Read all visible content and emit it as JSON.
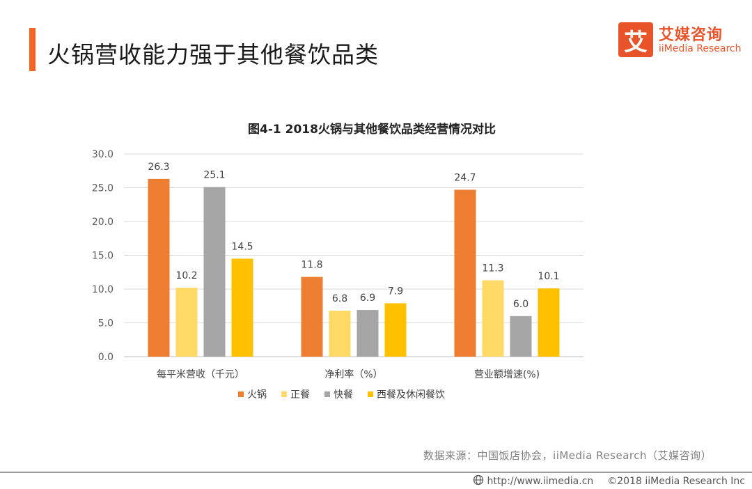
{
  "page": {
    "title": "火锅营收能力强于其他餐饮品类",
    "accent_color": "#f26522"
  },
  "logo": {
    "mark": "艾",
    "name_cn": "艾媒咨询",
    "name_en": "iiMedia Research",
    "color": "#e8532a"
  },
  "chart_data": {
    "type": "bar",
    "title": "图4-1 2018火锅与其他餐饮品类经营情况对比",
    "categories": [
      "每平米营收（千元）",
      "净利率（%）",
      "营业额增速(%)"
    ],
    "series": [
      {
        "name": "火锅",
        "values": [
          26.3,
          11.8,
          24.7
        ],
        "color": "#ed7d31"
      },
      {
        "name": "正餐",
        "values": [
          10.2,
          6.8,
          11.3
        ],
        "color": "#ffd966"
      },
      {
        "name": "快餐",
        "values": [
          25.1,
          6.9,
          6.0
        ],
        "color": "#a5a5a5"
      },
      {
        "name": "西餐及休闲餐饮",
        "values": [
          14.5,
          7.9,
          10.1
        ],
        "color": "#ffc000"
      }
    ],
    "ylim": [
      0,
      30
    ],
    "yticks": [
      "0.0",
      "5.0",
      "10.0",
      "15.0",
      "20.0",
      "25.0",
      "30.0"
    ],
    "xlabel": "",
    "ylabel": "",
    "grid": true,
    "legend_position": "bottom"
  },
  "source": "数据来源：中国饭店协会，iiMedia Research（艾媒咨询）",
  "footer": {
    "url": "http://www.iimedia.cn",
    "copyright": "©2018  iiMedia Research Inc"
  }
}
